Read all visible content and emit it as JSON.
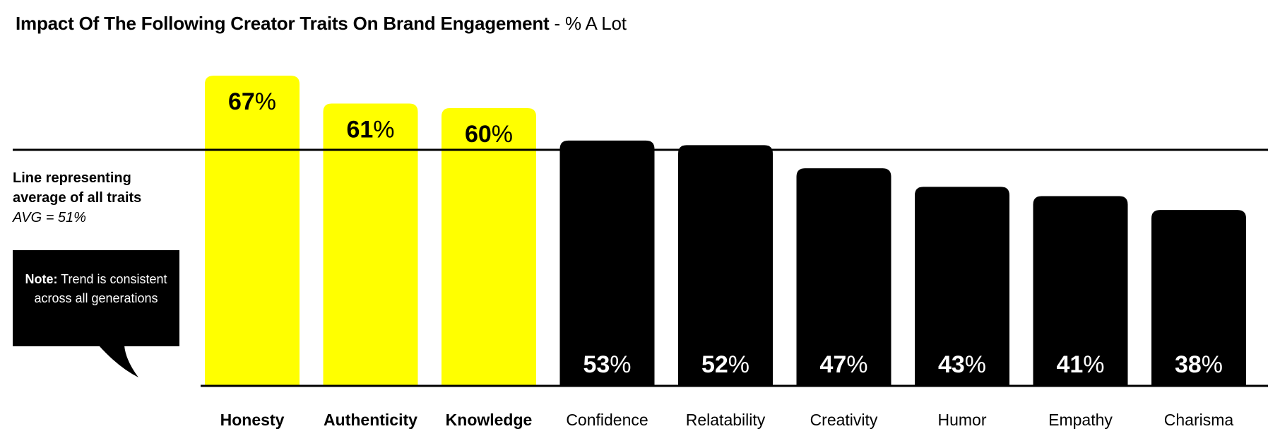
{
  "title": {
    "bold": "Impact Of The Following Creator Traits On Brand Engagement",
    "rest": " - % A Lot"
  },
  "avg_note": {
    "line1": "Line representing",
    "line2": "average of all traits",
    "line3": "AVG = 51%"
  },
  "callout": {
    "bold": "Note:",
    "text": " Trend is consistent across all generations"
  },
  "colors": {
    "highlight": "#FFFF00",
    "default": "#000000",
    "label_dark": "#000000",
    "label_light": "#FFFFFF"
  },
  "chart_data": {
    "type": "bar",
    "categories": [
      "Honesty",
      "Authenticity",
      "Knowledge",
      "Confidence",
      "Relatability",
      "Creativity",
      "Humor",
      "Empathy",
      "Charisma"
    ],
    "values": [
      67,
      61,
      60,
      53,
      52,
      47,
      43,
      41,
      38
    ],
    "highlighted": [
      true,
      true,
      true,
      false,
      false,
      false,
      false,
      false,
      false
    ],
    "value_suffix": "%",
    "average": 51,
    "ylim": [
      0,
      70
    ],
    "grid": false,
    "legend": "none"
  }
}
